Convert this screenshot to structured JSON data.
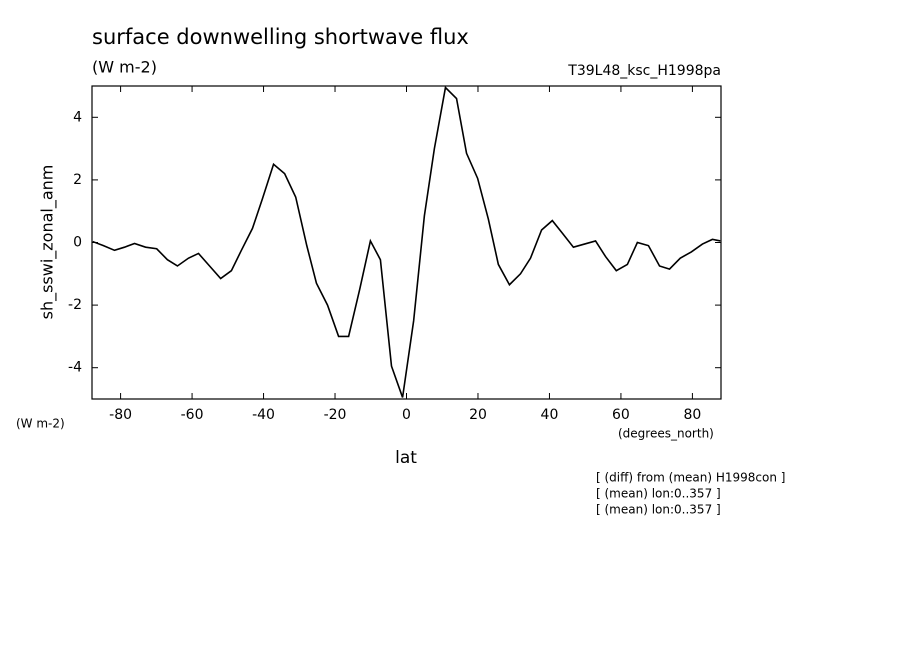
{
  "chart_data": {
    "type": "line",
    "title": "surface downwelling shortwave flux",
    "units": "(W m-2)",
    "run_label": "T39L48_ksc_H1998pa",
    "y_label": "sh_sswi_zonal_anm",
    "y_units": "(W m-2)",
    "x_units": "(degrees_north)",
    "x_label": "lat",
    "notes": [
      "[ (diff) from (mean) H1998con ]",
      "[ (mean) lon:0..357 ]",
      "[ (mean) lon:0..357 ]"
    ],
    "xlim": [
      -88,
      88
    ],
    "ylim": [
      -5,
      5
    ],
    "xticks": [
      -80,
      -60,
      -40,
      -20,
      0,
      20,
      40,
      60,
      80
    ],
    "yticks": [
      -4,
      -2,
      0,
      2,
      4
    ],
    "x": [
      -87.8,
      -84.8,
      -81.7,
      -78.9,
      -76.1,
      -73.0,
      -69.9,
      -66.9,
      -64.1,
      -61.0,
      -58.2,
      -55.1,
      -52.0,
      -49.0,
      -46.2,
      -43.1,
      -40.3,
      -37.2,
      -34.1,
      -31.0,
      -27.9,
      -25.2,
      -22.1,
      -19.0,
      -16.2,
      -13.1,
      -10.1,
      -7.3,
      -4.2,
      -1.1,
      2.0,
      5.0,
      7.8,
      10.9,
      14.0,
      16.8,
      19.9,
      22.9,
      25.7,
      28.8,
      31.9,
      34.7,
      37.8,
      40.8,
      43.6,
      46.7,
      49.8,
      52.9,
      55.7,
      58.7,
      61.8,
      64.6,
      67.7,
      70.8,
      73.6,
      76.6,
      79.7,
      82.8,
      85.6,
      87.8
    ],
    "series": [
      {
        "color": "#000000",
        "values": [
          0.03,
          -0.1,
          -0.25,
          -0.15,
          -0.03,
          -0.15,
          -0.2,
          -0.55,
          -0.75,
          -0.5,
          -0.35,
          -0.75,
          -1.15,
          -0.9,
          -0.25,
          0.45,
          1.4,
          2.5,
          2.2,
          1.45,
          -0.1,
          -1.3,
          -2.0,
          -3.0,
          -3.0,
          -1.5,
          0.05,
          -0.55,
          -3.95,
          -4.95,
          -2.5,
          0.85,
          3.0,
          4.95,
          4.6,
          2.85,
          2.05,
          0.75,
          -0.7,
          -1.35,
          -1.0,
          -0.5,
          0.4,
          0.7,
          0.3,
          -0.15,
          -0.05,
          0.05,
          -0.45,
          -0.9,
          -0.7,
          0.0,
          -0.1,
          -0.75,
          -0.85,
          -0.5,
          -0.3,
          -0.05,
          0.1,
          0.05
        ]
      }
    ]
  }
}
